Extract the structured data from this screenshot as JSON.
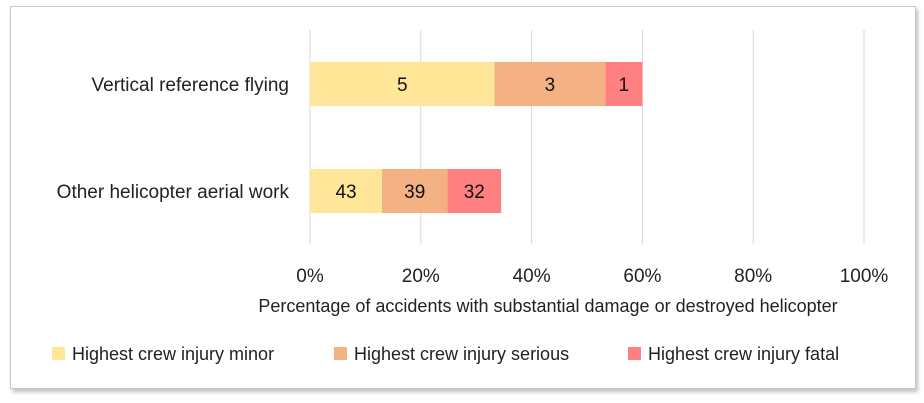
{
  "chart_data": {
    "type": "bar",
    "orientation": "horizontal",
    "stacked": true,
    "categories": [
      "Vertical reference flying",
      "Other helicopter aerial work"
    ],
    "series": [
      {
        "name": "Highest crew injury minor",
        "color": "#FFE699",
        "values": [
          33.3,
          13.0
        ],
        "labels": [
          "5",
          "43"
        ]
      },
      {
        "name": "Highest crew injury serious",
        "color": "#F4B183",
        "values": [
          20.0,
          11.8
        ],
        "labels": [
          "3",
          "39"
        ]
      },
      {
        "name": "Highest crew injury fatal",
        "color": "#FF8080",
        "values": [
          6.7,
          9.7
        ],
        "labels": [
          "1",
          "32"
        ]
      }
    ],
    "xlabel": "Percentage of accidents with substantial damage or destroyed helicopter",
    "xlim": [
      0,
      100
    ],
    "xticks": [
      "0%",
      "20%",
      "40%",
      "60%",
      "80%",
      "100%"
    ],
    "grid": true,
    "legend_position": "bottom"
  }
}
